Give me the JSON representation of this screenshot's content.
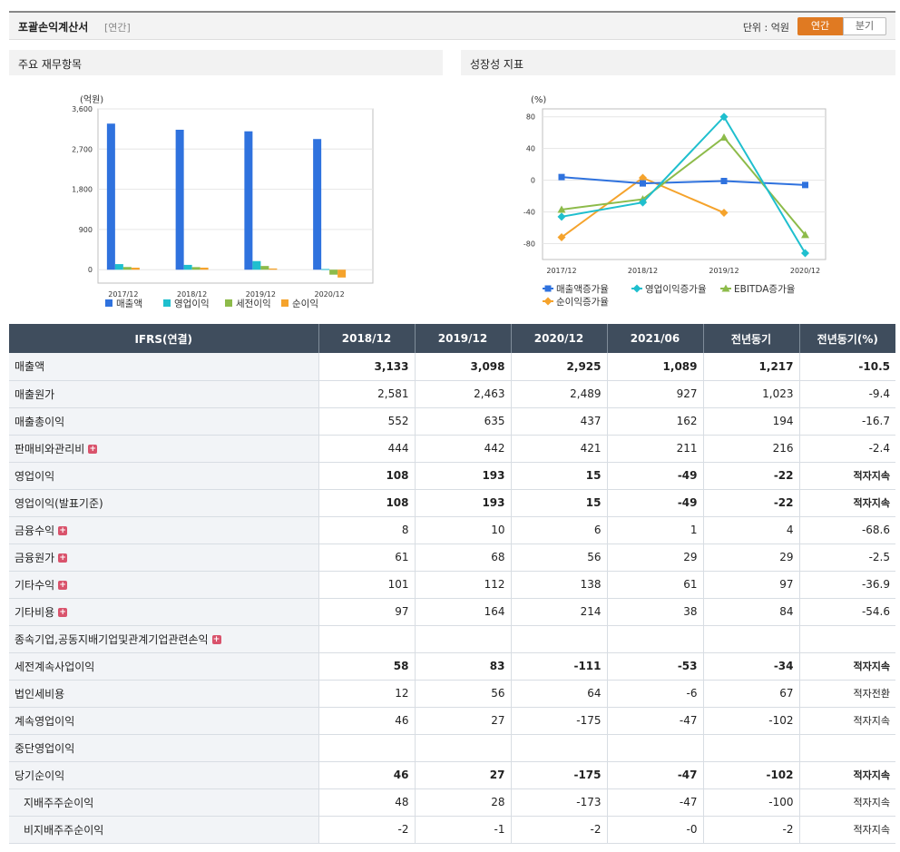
{
  "header": {
    "title": "포괄손익계산서",
    "subtitle": "[연간]",
    "unit": "단위 : 억원",
    "btn_annual": "연간",
    "btn_quarter": "분기"
  },
  "left_panel": {
    "title": "주요 재무항목"
  },
  "right_panel": {
    "title": "성장성 지표"
  },
  "chart_data": [
    {
      "type": "bar",
      "ylabel": "(억원)",
      "ylim": [
        -300,
        3600
      ],
      "yticks": [
        "3,600",
        "2,700",
        "1,800",
        "900",
        "0"
      ],
      "ytick_values": [
        3600,
        2700,
        1800,
        900,
        0
      ],
      "categories": [
        "2017/12",
        "2018/12",
        "2019/12",
        "2020/12"
      ],
      "series": [
        {
          "name": "매출액",
          "color": "#2f72de",
          "values": [
            3270,
            3133,
            3098,
            2925
          ]
        },
        {
          "name": "영업이익",
          "color": "#1fbfce",
          "values": [
            125,
            108,
            193,
            15
          ]
        },
        {
          "name": "세전이익",
          "color": "#8dbb4a",
          "values": [
            60,
            58,
            83,
            -111
          ]
        },
        {
          "name": "순이익",
          "color": "#f5a32c",
          "values": [
            45,
            46,
            27,
            -175
          ]
        }
      ],
      "legend": "bottom"
    },
    {
      "type": "line",
      "ylabel": "(%)",
      "ylim": [
        -100,
        90
      ],
      "yticks": [
        "80",
        "40",
        "0",
        "-40",
        "-80"
      ],
      "ytick_values": [
        80,
        40,
        0,
        -40,
        -80
      ],
      "categories": [
        "2017/12",
        "2018/12",
        "2019/12",
        "2020/12"
      ],
      "series": [
        {
          "name": "매출액증가율",
          "color": "#2f72de",
          "marker": "square",
          "values": [
            4,
            -4,
            -1,
            -6
          ]
        },
        {
          "name": "영업이익증가율",
          "color": "#1fbfce",
          "marker": "diamond",
          "values": [
            -46,
            -28,
            80,
            -92
          ]
        },
        {
          "name": "EBITDA증가율",
          "color": "#8dbb4a",
          "marker": "triangle",
          "values": [
            -37,
            -24,
            54,
            -69
          ]
        },
        {
          "name": "순이익증가율",
          "color": "#f5a32c",
          "marker": "diamond",
          "values": [
            -72,
            3,
            -41,
            null
          ]
        }
      ],
      "legend": "bottom"
    }
  ],
  "table": {
    "headers": [
      "IFRS(연결)",
      "2018/12",
      "2019/12",
      "2020/12",
      "2021/06",
      "전년동기",
      "전년동기(%)"
    ],
    "rows": [
      {
        "label": "매출액",
        "bold": true,
        "plus": false,
        "indent": false,
        "values": [
          "3,133",
          "3,098",
          "2,925",
          "1,089",
          "1,217",
          "-10.5"
        ]
      },
      {
        "label": "매출원가",
        "bold": false,
        "plus": false,
        "indent": false,
        "values": [
          "2,581",
          "2,463",
          "2,489",
          "927",
          "1,023",
          "-9.4"
        ]
      },
      {
        "label": "매출총이익",
        "bold": false,
        "plus": false,
        "indent": false,
        "values": [
          "552",
          "635",
          "437",
          "162",
          "194",
          "-16.7"
        ]
      },
      {
        "label": "판매비와관리비",
        "bold": false,
        "plus": true,
        "indent": false,
        "values": [
          "444",
          "442",
          "421",
          "211",
          "216",
          "-2.4"
        ]
      },
      {
        "label": "영업이익",
        "bold": true,
        "plus": false,
        "indent": false,
        "values": [
          "108",
          "193",
          "15",
          "-49",
          "-22",
          "적자지속"
        ]
      },
      {
        "label": "영업이익(발표기준)",
        "bold": true,
        "plus": false,
        "indent": false,
        "values": [
          "108",
          "193",
          "15",
          "-49",
          "-22",
          "적자지속"
        ]
      },
      {
        "label": "금융수익",
        "bold": false,
        "plus": true,
        "indent": false,
        "values": [
          "8",
          "10",
          "6",
          "1",
          "4",
          "-68.6"
        ]
      },
      {
        "label": "금융원가",
        "bold": false,
        "plus": true,
        "indent": false,
        "values": [
          "61",
          "68",
          "56",
          "29",
          "29",
          "-2.5"
        ]
      },
      {
        "label": "기타수익",
        "bold": false,
        "plus": true,
        "indent": false,
        "values": [
          "101",
          "112",
          "138",
          "61",
          "97",
          "-36.9"
        ]
      },
      {
        "label": "기타비용",
        "bold": false,
        "plus": true,
        "indent": false,
        "values": [
          "97",
          "164",
          "214",
          "38",
          "84",
          "-54.6"
        ]
      },
      {
        "label": "종속기업,공동지배기업및관계기업관련손익",
        "bold": false,
        "plus": true,
        "indent": false,
        "values": [
          "",
          "",
          "",
          "",
          "",
          ""
        ]
      },
      {
        "label": "세전계속사업이익",
        "bold": true,
        "plus": false,
        "indent": false,
        "values": [
          "58",
          "83",
          "-111",
          "-53",
          "-34",
          "적자지속"
        ]
      },
      {
        "label": "법인세비용",
        "bold": false,
        "plus": false,
        "indent": false,
        "values": [
          "12",
          "56",
          "64",
          "-6",
          "67",
          "적자전환"
        ]
      },
      {
        "label": "계속영업이익",
        "bold": false,
        "plus": false,
        "indent": false,
        "values": [
          "46",
          "27",
          "-175",
          "-47",
          "-102",
          "적자지속"
        ]
      },
      {
        "label": "중단영업이익",
        "bold": false,
        "plus": false,
        "indent": false,
        "values": [
          "",
          "",
          "",
          "",
          "",
          ""
        ]
      },
      {
        "label": "당기순이익",
        "bold": true,
        "plus": false,
        "indent": false,
        "values": [
          "46",
          "27",
          "-175",
          "-47",
          "-102",
          "적자지속"
        ]
      },
      {
        "label": "지배주주순이익",
        "bold": false,
        "plus": false,
        "indent": true,
        "values": [
          "48",
          "28",
          "-173",
          "-47",
          "-100",
          "적자지속"
        ]
      },
      {
        "label": "비지배주주순이익",
        "bold": false,
        "plus": false,
        "indent": true,
        "values": [
          "-2",
          "-1",
          "-2",
          "-0",
          "-2",
          "적자지속"
        ]
      }
    ]
  }
}
